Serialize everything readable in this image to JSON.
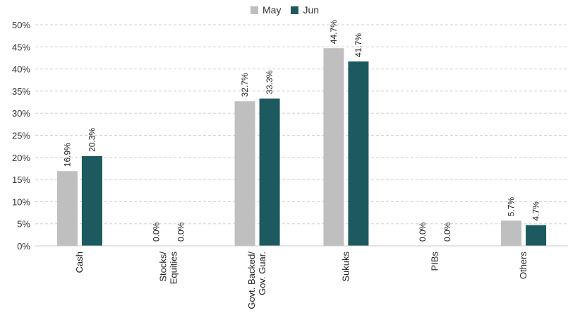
{
  "chart_data": {
    "type": "bar",
    "categories": [
      "Cash",
      "Stocks/\nEquities",
      "Govt. Backed/\nGov. Guar.",
      "Sukuks",
      "PIBs",
      "Others"
    ],
    "series": [
      {
        "name": "May",
        "values": [
          16.9,
          0.0,
          32.7,
          44.7,
          0.0,
          5.7
        ],
        "labels": [
          "16.9%",
          "0.0%",
          "32.7%",
          "44.7%",
          "0.0%",
          "5.7%"
        ],
        "color": "#bfbfbf"
      },
      {
        "name": "Jun",
        "values": [
          20.3,
          0.0,
          33.3,
          41.7,
          0.0,
          4.7
        ],
        "labels": [
          "20.3%",
          "0.0%",
          "33.3%",
          "41.7%",
          "0.0%",
          "4.7%"
        ],
        "color": "#1d5a60"
      }
    ],
    "yticks": [
      "0%",
      "5%",
      "10%",
      "15%",
      "20%",
      "25%",
      "30%",
      "35%",
      "40%",
      "45%",
      "50%"
    ],
    "ylim": [
      0,
      50
    ],
    "grid": true,
    "legend_position": "top-center"
  }
}
